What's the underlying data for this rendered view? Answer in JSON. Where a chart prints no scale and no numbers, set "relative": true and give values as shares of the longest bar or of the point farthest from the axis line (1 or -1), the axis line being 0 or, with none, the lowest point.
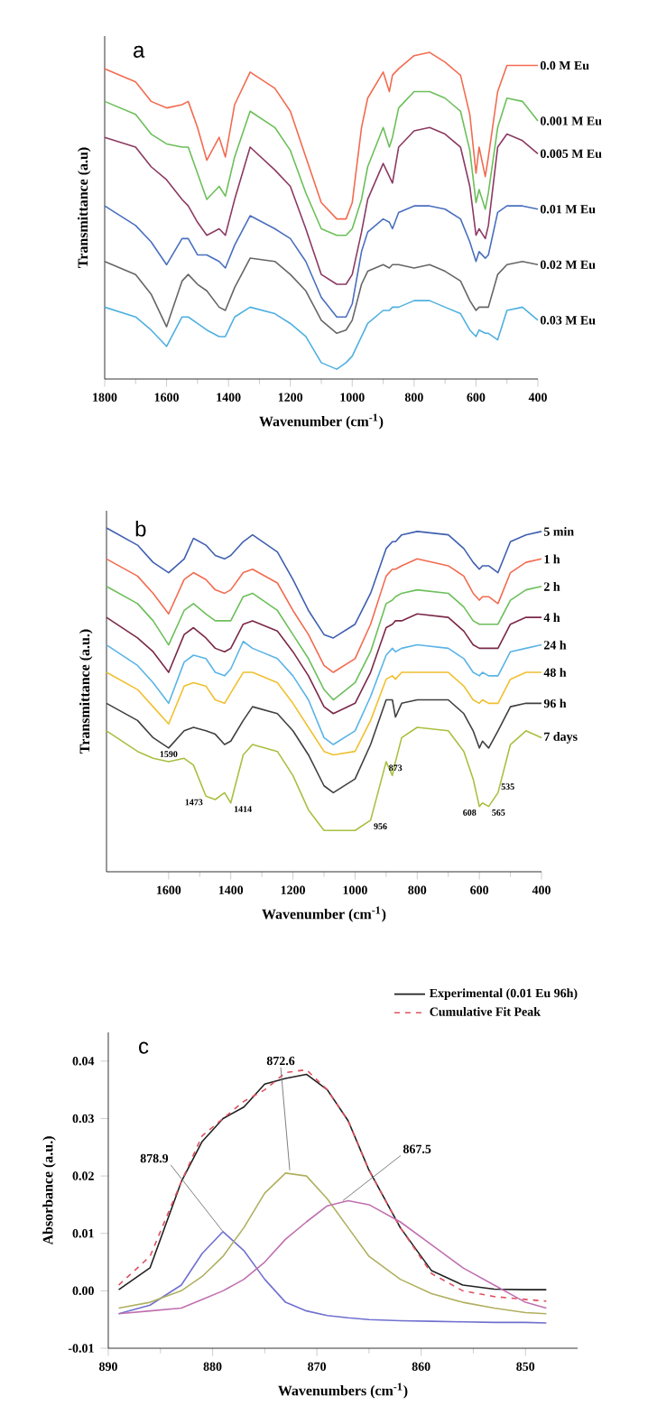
{
  "chart_data": [
    {
      "type": "line",
      "relative": true,
      "xlabel": "Wavenumber (cm$^{-1}$)",
      "ylabel": "Transmittance (a.u)",
      "xlim": [
        1800,
        400
      ],
      "xticks": [
        1800,
        1600,
        1400,
        1200,
        1000,
        800,
        600,
        400
      ],
      "annotations": [
        "a"
      ],
      "x": [
        1800,
        1700,
        1650,
        1600,
        1550,
        1530,
        1500,
        1470,
        1430,
        1410,
        1380,
        1330,
        1250,
        1200,
        1150,
        1100,
        1050,
        1020,
        1000,
        970,
        950,
        900,
        880,
        870,
        850,
        800,
        750,
        700,
        650,
        620,
        600,
        590,
        570,
        560,
        530,
        500,
        450,
        400
      ],
      "series": [
        {
          "name": "0.0 M Eu",
          "color": "#f26b50",
          "values": [
            0.95,
            0.91,
            0.85,
            0.83,
            0.84,
            0.85,
            0.77,
            0.67,
            0.74,
            0.68,
            0.84,
            0.94,
            0.89,
            0.82,
            0.68,
            0.54,
            0.49,
            0.49,
            0.54,
            0.77,
            0.86,
            0.94,
            0.88,
            0.93,
            0.95,
            0.99,
            1,
            0.97,
            0.93,
            0.81,
            0.63,
            0.71,
            0.62,
            0.68,
            0.88,
            0.96,
            0.96,
            0.96
          ]
        },
        {
          "name": "0.001 M Eu",
          "color": "#6cbf5a",
          "values": [
            0.85,
            0.81,
            0.75,
            0.72,
            0.71,
            0.71,
            0.63,
            0.55,
            0.59,
            0.56,
            0.68,
            0.82,
            0.77,
            0.7,
            0.57,
            0.46,
            0.44,
            0.44,
            0.46,
            0.55,
            0.65,
            0.77,
            0.71,
            0.74,
            0.83,
            0.88,
            0.88,
            0.86,
            0.82,
            0.7,
            0.54,
            0.58,
            0.52,
            0.57,
            0.77,
            0.86,
            0.85,
            0.79
          ]
        },
        {
          "name": "0.005 M Eu",
          "color": "#8b3a62",
          "values": [
            0.74,
            0.71,
            0.65,
            0.61,
            0.55,
            0.53,
            0.48,
            0.44,
            0.46,
            0.44,
            0.55,
            0.71,
            0.64,
            0.59,
            0.46,
            0.32,
            0.29,
            0.29,
            0.32,
            0.45,
            0.55,
            0.66,
            0.62,
            0.6,
            0.71,
            0.76,
            0.77,
            0.75,
            0.71,
            0.59,
            0.44,
            0.46,
            0.43,
            0.47,
            0.71,
            0.75,
            0.73,
            0.69
          ]
        },
        {
          "name": "0.01 M Eu",
          "color": "#4a6fbf",
          "values": [
            0.53,
            0.47,
            0.42,
            0.35,
            0.43,
            0.43,
            0.38,
            0.38,
            0.36,
            0.34,
            0.41,
            0.5,
            0.46,
            0.43,
            0.36,
            0.25,
            0.19,
            0.19,
            0.23,
            0.39,
            0.45,
            0.49,
            0.48,
            0.46,
            0.51,
            0.53,
            0.53,
            0.52,
            0.49,
            0.42,
            0.36,
            0.39,
            0.37,
            0.38,
            0.51,
            0.53,
            0.53,
            0.52
          ]
        },
        {
          "name": "0.02 M Eu",
          "color": "#666666",
          "values": [
            0.36,
            0.32,
            0.26,
            0.16,
            0.3,
            0.32,
            0.29,
            0.27,
            0.22,
            0.21,
            0.28,
            0.37,
            0.36,
            0.32,
            0.27,
            0.18,
            0.14,
            0.15,
            0.18,
            0.29,
            0.33,
            0.35,
            0.34,
            0.35,
            0.35,
            0.34,
            0.35,
            0.33,
            0.3,
            0.24,
            0.21,
            0.22,
            0.22,
            0.22,
            0.32,
            0.35,
            0.36,
            0.35
          ]
        },
        {
          "name": "0.03 M Eu",
          "color": "#4fb0e0",
          "values": [
            0.22,
            0.19,
            0.15,
            0.1,
            0.19,
            0.19,
            0.17,
            0.15,
            0.13,
            0.13,
            0.19,
            0.22,
            0.2,
            0.17,
            0.13,
            0.05,
            0.03,
            0.05,
            0.07,
            0.13,
            0.17,
            0.21,
            0.21,
            0.22,
            0.22,
            0.24,
            0.24,
            0.22,
            0.2,
            0.15,
            0.13,
            0.15,
            0.14,
            0.14,
            0.12,
            0.21,
            0.22,
            0.18
          ]
        }
      ]
    },
    {
      "type": "line",
      "relative": true,
      "xlabel": "Wavenumber (cm$^{-1}$)",
      "ylabel": "Transmittance (a.u.)",
      "xlim": [
        1800,
        400
      ],
      "xticks": [
        1600,
        1400,
        1200,
        1000,
        800,
        600,
        400
      ],
      "annotations": [
        "b",
        {
          "text": "1590",
          "x": 1600,
          "y": 0.36
        },
        {
          "text": "1473",
          "x": 1480,
          "y": 0.22
        },
        {
          "text": "1414",
          "x": 1400,
          "y": 0.2
        },
        {
          "text": "956",
          "x": 950,
          "y": 0.15
        },
        {
          "text": "873",
          "x": 870,
          "y": 0.32
        },
        {
          "text": "608",
          "x": 600,
          "y": 0.19
        },
        {
          "text": "565",
          "x": 570,
          "y": 0.19
        },
        {
          "text": "535",
          "x": 540,
          "y": 0.23
        }
      ],
      "x": [
        1800,
        1700,
        1650,
        1600,
        1550,
        1520,
        1480,
        1450,
        1420,
        1400,
        1360,
        1330,
        1250,
        1200,
        1150,
        1100,
        1070,
        1000,
        950,
        900,
        880,
        870,
        850,
        800,
        700,
        650,
        620,
        600,
        590,
        570,
        540,
        500,
        450,
        400
      ],
      "series": [
        {
          "name": "5 min",
          "color": "#3f5fb0",
          "values": [
            1,
            0.95,
            0.9,
            0.87,
            0.91,
            0.97,
            0.95,
            0.92,
            0.91,
            0.92,
            0.96,
            0.98,
            0.93,
            0.85,
            0.76,
            0.69,
            0.68,
            0.72,
            0.81,
            0.94,
            0.96,
            0.96,
            0.98,
            0.99,
            0.98,
            0.94,
            0.9,
            0.88,
            0.89,
            0.89,
            0.87,
            0.96,
            0.98,
            0.99
          ]
        },
        {
          "name": "1 h",
          "color": "#f26b50",
          "values": [
            0.91,
            0.86,
            0.81,
            0.75,
            0.85,
            0.87,
            0.85,
            0.82,
            0.81,
            0.82,
            0.87,
            0.88,
            0.84,
            0.76,
            0.69,
            0.6,
            0.58,
            0.62,
            0.72,
            0.86,
            0.88,
            0.88,
            0.89,
            0.91,
            0.89,
            0.86,
            0.81,
            0.79,
            0.8,
            0.8,
            0.78,
            0.87,
            0.9,
            0.91
          ]
        },
        {
          "name": "2 h",
          "color": "#6cbf5a",
          "values": [
            0.83,
            0.78,
            0.73,
            0.66,
            0.76,
            0.78,
            0.75,
            0.73,
            0.73,
            0.73,
            0.8,
            0.81,
            0.76,
            0.69,
            0.62,
            0.53,
            0.5,
            0.55,
            0.64,
            0.78,
            0.79,
            0.8,
            0.81,
            0.82,
            0.81,
            0.77,
            0.73,
            0.72,
            0.72,
            0.72,
            0.72,
            0.79,
            0.82,
            0.83
          ]
        },
        {
          "name": "4 h",
          "color": "#7a2848",
          "values": [
            0.74,
            0.68,
            0.64,
            0.58,
            0.69,
            0.71,
            0.68,
            0.65,
            0.64,
            0.65,
            0.72,
            0.73,
            0.7,
            0.64,
            0.57,
            0.48,
            0.46,
            0.49,
            0.58,
            0.71,
            0.72,
            0.73,
            0.73,
            0.75,
            0.74,
            0.7,
            0.66,
            0.65,
            0.65,
            0.65,
            0.65,
            0.72,
            0.74,
            0.74
          ]
        },
        {
          "name": "24 h",
          "color": "#5ab4e6",
          "values": [
            0.66,
            0.6,
            0.55,
            0.49,
            0.61,
            0.63,
            0.62,
            0.58,
            0.57,
            0.59,
            0.67,
            0.65,
            0.62,
            0.57,
            0.5,
            0.39,
            0.37,
            0.41,
            0.51,
            0.63,
            0.65,
            0.64,
            0.65,
            0.66,
            0.65,
            0.62,
            0.58,
            0.57,
            0.58,
            0.57,
            0.57,
            0.64,
            0.65,
            0.66
          ]
        },
        {
          "name": "48 h",
          "color": "#f0c030",
          "values": [
            0.58,
            0.53,
            0.48,
            0.43,
            0.54,
            0.55,
            0.54,
            0.5,
            0.49,
            0.52,
            0.58,
            0.58,
            0.55,
            0.49,
            0.42,
            0.35,
            0.34,
            0.35,
            0.44,
            0.56,
            0.57,
            0.56,
            0.58,
            0.58,
            0.58,
            0.54,
            0.5,
            0.49,
            0.5,
            0.49,
            0.49,
            0.56,
            0.58,
            0.58
          ]
        },
        {
          "name": "96 h",
          "color": "#404040",
          "values": [
            0.49,
            0.44,
            0.39,
            0.36,
            0.41,
            0.42,
            0.41,
            0.4,
            0.37,
            0.38,
            0.44,
            0.48,
            0.46,
            0.41,
            0.34,
            0.25,
            0.23,
            0.27,
            0.37,
            0.5,
            0.5,
            0.45,
            0.49,
            0.5,
            0.5,
            0.46,
            0.41,
            0.36,
            0.38,
            0.36,
            0.41,
            0.48,
            0.49,
            0.49
          ]
        },
        {
          "name": "7 days",
          "color": "#a8c040",
          "values": [
            0.41,
            0.35,
            0.33,
            0.32,
            0.33,
            0.31,
            0.22,
            0.21,
            0.23,
            0.2,
            0.34,
            0.37,
            0.35,
            0.28,
            0.18,
            0.12,
            0.12,
            0.12,
            0.15,
            0.32,
            0.28,
            0.32,
            0.39,
            0.42,
            0.41,
            0.35,
            0.27,
            0.19,
            0.2,
            0.19,
            0.23,
            0.37,
            0.41,
            0.39
          ]
        }
      ]
    },
    {
      "type": "line",
      "xlabel": "Wavenumbers (cm$^{-1}$)",
      "ylabel": "Absorbance (a.u.)",
      "xlim": [
        890,
        845
      ],
      "xticks": [
        890,
        880,
        870,
        860,
        850
      ],
      "ylim": [
        -0.01,
        0.045
      ],
      "yticks": [
        {
          "value": -0.01,
          "label": "-0.01"
        },
        {
          "value": 0,
          "label": "0.00"
        },
        {
          "value": 0.01,
          "label": "0.01"
        },
        {
          "value": 0.02,
          "label": "0.02"
        },
        {
          "value": 0.03,
          "label": "0.03"
        },
        {
          "value": 0.04,
          "label": "0.04"
        }
      ],
      "legend": "top right",
      "annotations": [
        "c",
        {
          "text": "878.9",
          "x": 879,
          "y": 0.0103
        },
        {
          "text": "872.6",
          "x": 872.6,
          "y": 0.021
        },
        {
          "text": "867.5",
          "x": 867.5,
          "y": 0.0157
        }
      ],
      "x": [
        889,
        886,
        883,
        881,
        879,
        877,
        875,
        873,
        871,
        869,
        867,
        865,
        862,
        859,
        856,
        853,
        850,
        848
      ],
      "series": [
        {
          "name": "Experimental (0.01 Eu 96h)",
          "color": "#202020",
          "values": [
            0.0002,
            0.004,
            0.019,
            0.026,
            0.03,
            0.032,
            0.036,
            0.037,
            0.0377,
            0.035,
            0.0296,
            0.021,
            0.011,
            0.0035,
            0.001,
            0.0003,
            0.0002,
            0.0002
          ]
        },
        {
          "name": "Cumulative Fit Peak",
          "color": "#e05060",
          "line_style": "dashed",
          "values": [
            0.001,
            0.006,
            0.019,
            0.027,
            0.03,
            0.033,
            0.035,
            0.038,
            0.0385,
            0.035,
            0.0296,
            0.021,
            0.011,
            0.003,
            0,
            -0.001,
            -0.0015,
            -0.0018
          ]
        },
        {
          "color": "#7070d0",
          "values": [
            -0.004,
            -0.0025,
            0.001,
            0.0065,
            0.0103,
            0.007,
            0.002,
            -0.002,
            -0.0035,
            -0.0043,
            -0.0047,
            -0.005,
            -0.0052,
            -0.0053,
            -0.0054,
            -0.0055,
            -0.0055,
            -0.0056
          ]
        },
        {
          "color": "#b0b060",
          "values": [
            -0.003,
            -0.002,
            0,
            0.0025,
            0.006,
            0.011,
            0.017,
            0.0205,
            0.02,
            0.016,
            0.011,
            0.006,
            0.002,
            -0.0005,
            -0.002,
            -0.003,
            -0.0038,
            -0.004
          ]
        },
        {
          "color": "#c070b0",
          "values": [
            -0.004,
            -0.0035,
            -0.003,
            -0.0015,
            0,
            0.002,
            0.005,
            0.009,
            0.012,
            0.0148,
            0.0157,
            0.015,
            0.012,
            0.008,
            0.004,
            0.001,
            -0.002,
            -0.003
          ]
        }
      ]
    }
  ]
}
